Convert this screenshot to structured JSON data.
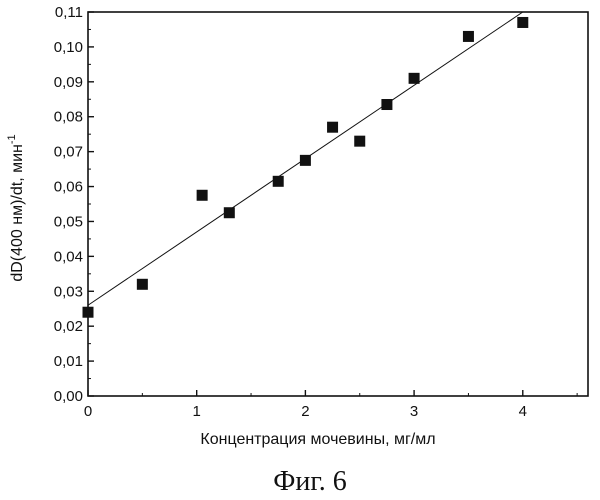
{
  "chart_data": {
    "type": "scatter",
    "title": "",
    "xlabel": "Концентрация мочевины, мг/мл",
    "ylabel": "dD(400 нм)/dt, мин",
    "ylabel_sup": "-1",
    "xlim": [
      0,
      4.6
    ],
    "ylim": [
      0.0,
      0.11
    ],
    "x_ticks": [
      0,
      1,
      2,
      3,
      4
    ],
    "x_tick_labels": [
      "0",
      "1",
      "2",
      "3",
      "4"
    ],
    "y_ticks": [
      0.0,
      0.01,
      0.02,
      0.03,
      0.04,
      0.05,
      0.06,
      0.07,
      0.08,
      0.09,
      0.1,
      0.11
    ],
    "y_tick_labels": [
      "0,00",
      "0,01",
      "0,02",
      "0,03",
      "0,04",
      "0,05",
      "0,06",
      "0,07",
      "0,08",
      "0,09",
      "0,10",
      "0,11"
    ],
    "grid": false,
    "series": [
      {
        "name": "data",
        "marker": "square",
        "color": "#111111",
        "x": [
          0.0,
          0.5,
          1.05,
          1.3,
          1.75,
          2.0,
          2.25,
          2.5,
          2.75,
          3.0,
          3.5,
          4.0
        ],
        "y": [
          0.024,
          0.032,
          0.0575,
          0.0525,
          0.0615,
          0.0675,
          0.077,
          0.073,
          0.0835,
          0.091,
          0.103,
          0.107
        ]
      }
    ],
    "fit_line": {
      "x": [
        0.0,
        4.0
      ],
      "y": [
        0.026,
        0.11
      ],
      "color": "#111111"
    },
    "caption": "Фиг. 6"
  }
}
